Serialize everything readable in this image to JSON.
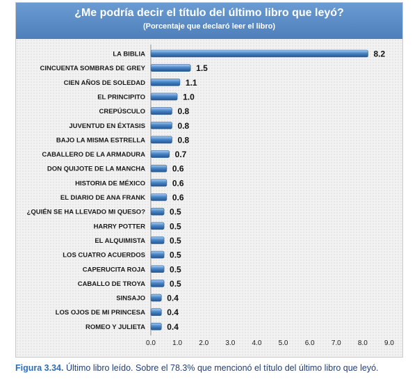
{
  "chart_data": {
    "type": "bar",
    "orientation": "horizontal",
    "title": "¿Me podría decir el título del último libro que leyó?",
    "subtitle": "(Porcentaje que declaró leer el libro)",
    "categories": [
      "LA BIBLIA",
      "CINCUENTA SOMBRAS DE GREY",
      "CIEN AÑOS DE SOLEDAD",
      "EL PRINCIPITO",
      "CREPÚSCULO",
      "JUVENTUD EN ÉXTASIS",
      "BAJO LA MISMA ESTRELLA",
      "CABALLERO DE LA ARMADURA",
      "DON QUIJOTE DE LA MANCHA",
      "HISTORIA DE MÉXICO",
      "EL DIARIO DE ANA FRANK",
      "¿QUIÉN SE HA LLEVADO MI QUESO?",
      "HARRY POTTER",
      "EL ALQUIMISTA",
      "LOS CUATRO ACUERDOS",
      "CAPERUCITA ROJA",
      "CABALLO DE TROYA",
      "SINSAJO",
      "LOS OJOS DE MI PRINCESA",
      "ROMEO Y JULIETA"
    ],
    "values": [
      8.2,
      1.5,
      1.1,
      1.0,
      0.8,
      0.8,
      0.8,
      0.7,
      0.6,
      0.6,
      0.6,
      0.5,
      0.5,
      0.5,
      0.5,
      0.5,
      0.5,
      0.4,
      0.4,
      0.4
    ],
    "value_labels": [
      "8.2",
      "1.5",
      "1.1",
      "1.0",
      "0.8",
      "0.8",
      "0.8",
      "0.7",
      "0.6",
      "0.6",
      "0.6",
      "0.5",
      "0.5",
      "0.5",
      "0.5",
      "0.5",
      "0.5",
      "0.4",
      "0.4",
      "0.4"
    ],
    "xlim": [
      0,
      9
    ],
    "x_ticks": [
      "0.0",
      "1.0",
      "2.0",
      "3.0",
      "4.0",
      "5.0",
      "6.0",
      "7.0",
      "8.0",
      "9.0"
    ],
    "grid": false,
    "bar_color": "#4a86c8"
  },
  "caption": {
    "figure_label": "Figura 3.34.",
    "text": " Último libro leído. Sobre el 78.3% que mencionó el título del último libro que leyó."
  }
}
